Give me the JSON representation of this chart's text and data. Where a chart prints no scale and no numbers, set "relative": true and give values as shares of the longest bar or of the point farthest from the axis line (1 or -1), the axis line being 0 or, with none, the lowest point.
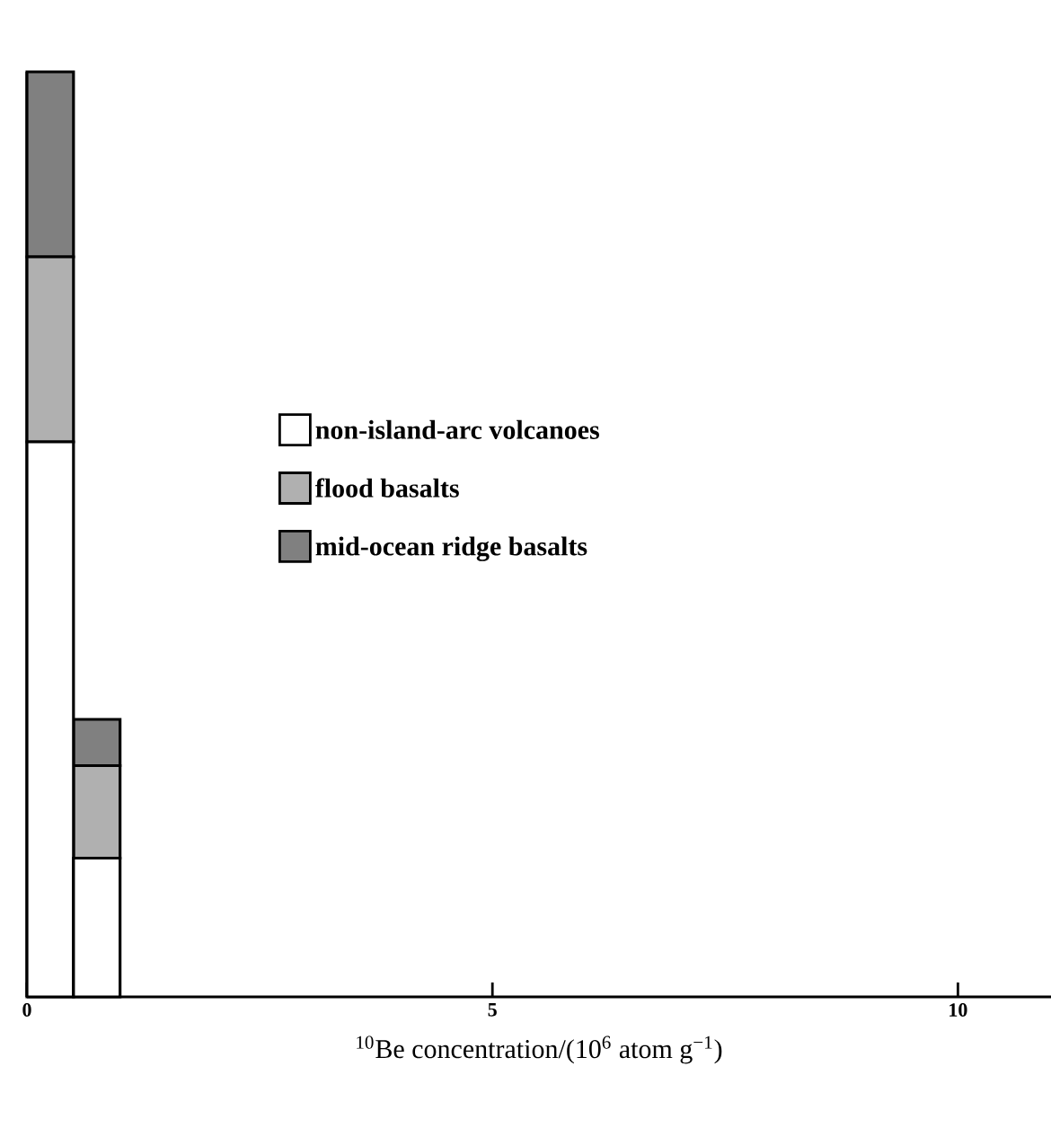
{
  "chart_data": {
    "type": "bar",
    "stacked": true,
    "relative": true,
    "x": [
      0.25,
      0.75
    ],
    "xlim": [
      0,
      11
    ],
    "xticks": [
      0,
      5,
      10
    ],
    "xlabel": "$^{10}$Be concentration/(10$^{6}$ atom g$^{−1}$)",
    "legend": "center",
    "series": [
      {
        "name": "non-island-arc volcanoes",
        "color": "#ffffff",
        "values": [
          0.6,
          0.15
        ]
      },
      {
        "name": "flood basalts",
        "color": "#b0b0b0",
        "values": [
          0.2,
          0.1
        ]
      },
      {
        "name": "mid-ocean ridge basalts",
        "color": "#808080",
        "values": [
          0.2,
          0.05
        ]
      }
    ]
  }
}
